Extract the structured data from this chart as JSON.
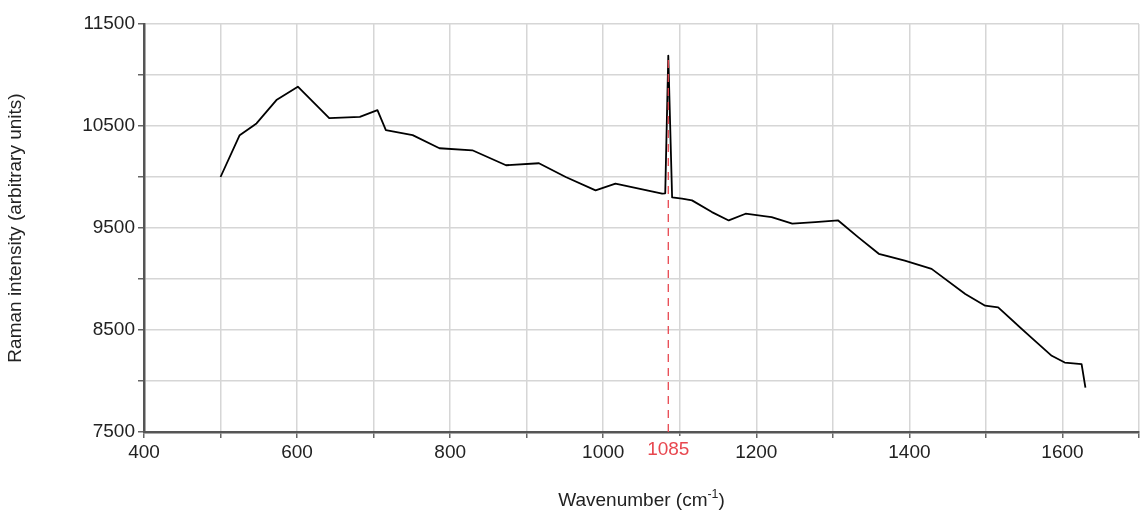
{
  "chart_data": {
    "type": "line",
    "xlabel": "Wavenumber (cm$^{-1}$)",
    "ylabel": "Raman intensity (arbitrary units)",
    "series": [
      {
        "color": "#000000",
        "x": [
          500,
          525,
          547,
          573,
          601,
          629,
          642,
          682,
          705,
          716,
          751,
          786,
          829,
          873,
          916,
          951,
          990,
          1016,
          1077,
          1081,
          1085,
          1090,
          1103,
          1116,
          1142,
          1164,
          1186,
          1220,
          1247,
          1277,
          1307,
          1333,
          1360,
          1394,
          1429,
          1473,
          1499,
          1516,
          1559,
          1586,
          1603,
          1625,
          1630
        ],
        "values": [
          10000,
          10410,
          10525,
          10754,
          10885,
          10676,
          10577,
          10590,
          10656,
          10459,
          10410,
          10282,
          10262,
          10115,
          10135,
          10000,
          9869,
          9935,
          9837,
          9840,
          11190,
          9800,
          9788,
          9771,
          9656,
          9574,
          9640,
          9607,
          9542,
          9558,
          9574,
          9410,
          9247,
          9181,
          9099,
          8853,
          8738,
          8722,
          8427,
          8247,
          8181,
          8165,
          7935
        ]
      }
    ],
    "xlim": [
      400,
      1700
    ],
    "xticks": [
      400,
      {
        "value": 500,
        "label": null
      },
      600,
      {
        "value": 700,
        "label": null
      },
      800,
      {
        "value": 900,
        "label": null
      },
      1000,
      {
        "value": 1100,
        "label": null
      },
      1200,
      {
        "value": 1300,
        "label": null
      },
      1400,
      {
        "value": 1500,
        "label": null
      },
      1600,
      {
        "value": 1700,
        "label": null
      }
    ],
    "ylim": [
      7500,
      11500
    ],
    "yticks": [
      7500,
      {
        "value": 8000,
        "label": null
      },
      8500,
      {
        "value": 9000,
        "label": null
      },
      9500,
      {
        "value": 10000,
        "label": null
      },
      10500,
      {
        "value": 11000,
        "label": null
      },
      11500
    ],
    "ref_lines": [
      {
        "axis": "x",
        "value": 1085,
        "label": "1085",
        "color": "#e8474f",
        "line_style": "dashed"
      }
    ],
    "grid": true,
    "legend": false,
    "marker": "none",
    "line_style": "solid"
  }
}
